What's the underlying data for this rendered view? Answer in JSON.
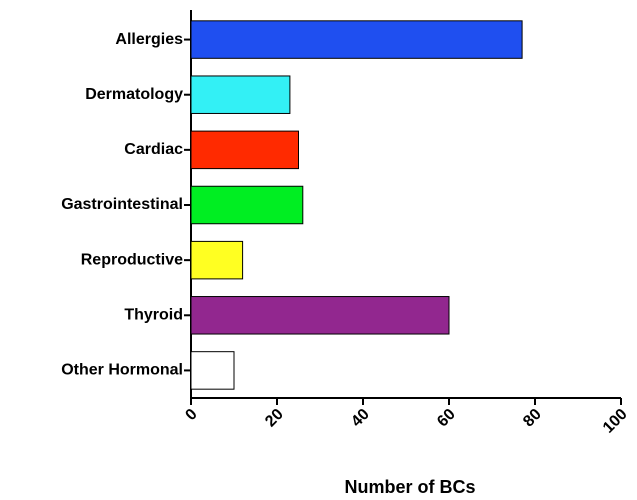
{
  "chart_data": {
    "type": "bar",
    "orientation": "horizontal",
    "x_label": "Number of BCs",
    "categories": [
      "Allergies",
      "Dermatology",
      "Cardiac",
      "Gastrointestinal",
      "Reproductive",
      "Thyroid",
      "Other Hormonal"
    ],
    "values": [
      77,
      23,
      25,
      26,
      12,
      60,
      10
    ],
    "colors": [
      "#1f4ff0",
      "#33f0f5",
      "#ff2a00",
      "#00ee22",
      "#ffff22",
      "#92278f",
      "#ffffff"
    ],
    "xlim": [
      0,
      100
    ],
    "xticks": [
      0,
      20,
      40,
      60,
      80,
      100
    ],
    "grid": false
  }
}
